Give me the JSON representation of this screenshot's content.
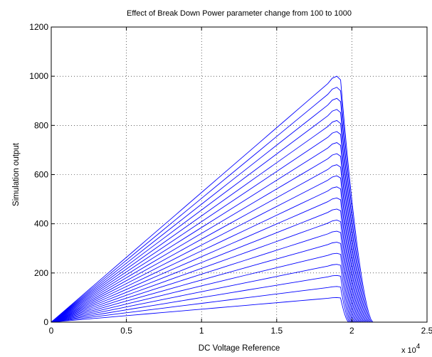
{
  "chart_data": {
    "type": "line",
    "title": "Effect of Break Down Power parameter change from 100 to 1000",
    "xlabel": "DC Voltage Reference",
    "ylabel": "Simulation output",
    "x_multiplier_label": "x 10",
    "x_multiplier_exponent": "4",
    "xlim": [
      0,
      2.5
    ],
    "ylim": [
      0,
      1200
    ],
    "xticks": [
      0,
      0.5,
      1,
      1.5,
      2,
      2.5
    ],
    "xtick_labels": [
      "0",
      "0.5",
      "1",
      "1.5",
      "2",
      "2.5"
    ],
    "yticks": [
      0,
      200,
      400,
      600,
      800,
      1000,
      1200
    ],
    "ytick_labels": [
      "0",
      "200",
      "400",
      "600",
      "800",
      "1000",
      "1200"
    ],
    "grid": true,
    "line_color": "#0000ff",
    "series_shape": {
      "rise_start_x": 0,
      "peak_x": 1.9,
      "fall_end_x_first": 1.98,
      "fall_end_x_last": 2.14,
      "x_scale_label": "x 10^4"
    },
    "series": [
      {
        "peak": 100
      },
      {
        "peak": 145
      },
      {
        "peak": 190
      },
      {
        "peak": 235
      },
      {
        "peak": 280
      },
      {
        "peak": 325
      },
      {
        "peak": 370
      },
      {
        "peak": 415
      },
      {
        "peak": 460
      },
      {
        "peak": 505
      },
      {
        "peak": 550
      },
      {
        "peak": 595
      },
      {
        "peak": 640
      },
      {
        "peak": 685
      },
      {
        "peak": 730
      },
      {
        "peak": 775
      },
      {
        "peak": 820
      },
      {
        "peak": 865
      },
      {
        "peak": 910
      },
      {
        "peak": 955
      },
      {
        "peak": 1000
      }
    ]
  }
}
